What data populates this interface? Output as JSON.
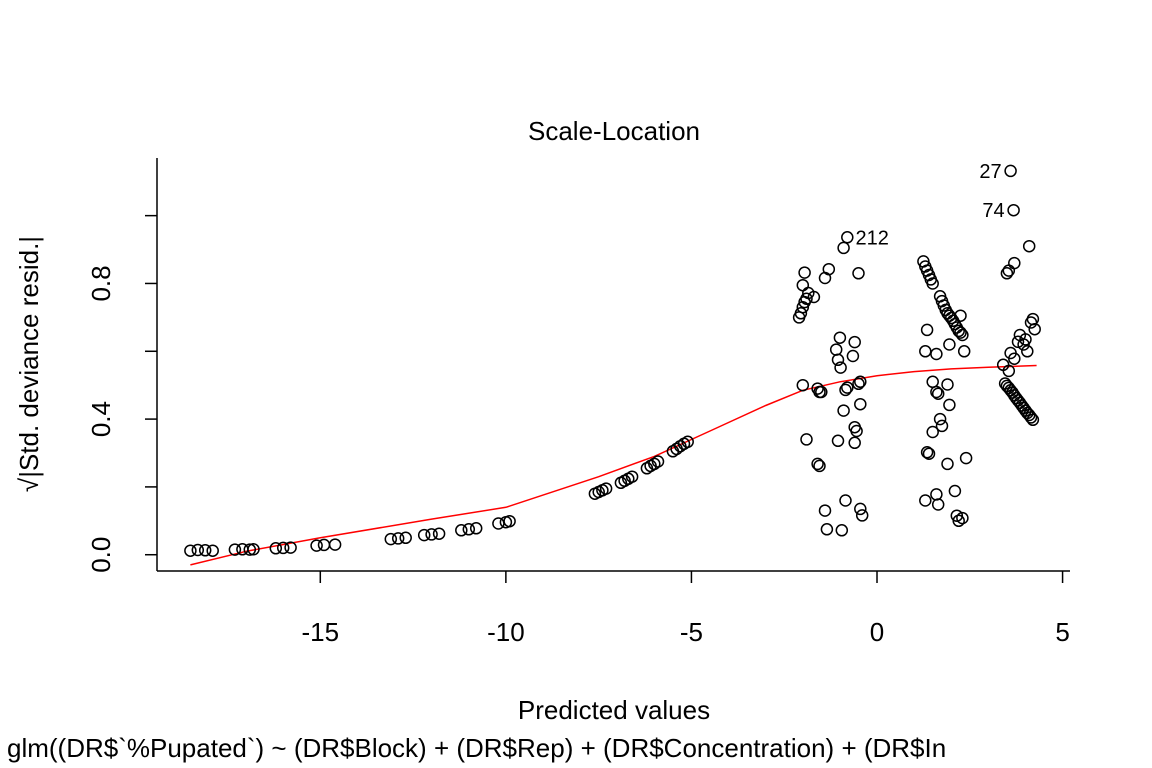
{
  "chart_data": {
    "type": "scatter",
    "title": "Scale-Location",
    "xlabel": "Predicted values",
    "ylabel": "√|Std. deviance resid.|",
    "caption": "glm((DR$`%Pupated`) ~ (DR$Block) + (DR$Rep) + (DR$Concentration) + (DR$In",
    "xlim": [
      -19.4,
      5.2
    ],
    "ylim": [
      -0.048,
      1.17
    ],
    "x_ticks": [
      "-15",
      "-10",
      "-5",
      "0",
      "5"
    ],
    "x_tick_values": [
      -15,
      -10,
      -5,
      0,
      5
    ],
    "y_ticks": [
      "0.0",
      "0.4",
      "0.8"
    ],
    "y_tick_values": [
      0,
      0.2,
      0.4,
      0.6,
      0.8,
      1.0
    ],
    "y_tick_labeled": [
      true,
      false,
      true,
      false,
      true,
      false
    ],
    "grid": false,
    "point_color": "#000000",
    "smooth_color": "#ff0000",
    "annotations": [
      {
        "text": "27",
        "x": 3.6,
        "y": 1.132
      },
      {
        "text": "74",
        "x": 3.68,
        "y": 1.016
      },
      {
        "text": "212",
        "x": -0.85,
        "y": 0.936
      }
    ],
    "series": [
      {
        "points": [
          [
            -18.5,
            0.012
          ],
          [
            -18.3,
            0.014
          ],
          [
            -18.1,
            0.013
          ],
          [
            -17.9,
            0.012
          ],
          [
            -17.3,
            0.015
          ],
          [
            -17.1,
            0.016
          ],
          [
            -16.9,
            0.015
          ],
          [
            -16.8,
            0.016
          ],
          [
            -16.2,
            0.019
          ],
          [
            -16.0,
            0.02
          ],
          [
            -15.8,
            0.021
          ],
          [
            -15.1,
            0.027
          ],
          [
            -14.9,
            0.029
          ],
          [
            -14.6,
            0.03
          ],
          [
            -13.1,
            0.046
          ],
          [
            -12.9,
            0.048
          ],
          [
            -12.7,
            0.05
          ],
          [
            -12.2,
            0.058
          ],
          [
            -12.0,
            0.06
          ],
          [
            -11.8,
            0.062
          ],
          [
            -11.2,
            0.072
          ],
          [
            -11.0,
            0.075
          ],
          [
            -10.8,
            0.078
          ],
          [
            -10.2,
            0.092
          ],
          [
            -10.0,
            0.096
          ],
          [
            -9.9,
            0.099
          ],
          [
            -7.6,
            0.18
          ],
          [
            -7.5,
            0.185
          ],
          [
            -7.4,
            0.19
          ],
          [
            -7.3,
            0.195
          ],
          [
            -6.9,
            0.212
          ],
          [
            -6.8,
            0.218
          ],
          [
            -6.7,
            0.224
          ],
          [
            -6.6,
            0.23
          ],
          [
            -6.2,
            0.255
          ],
          [
            -6.1,
            0.262
          ],
          [
            -6.0,
            0.268
          ],
          [
            -5.9,
            0.275
          ],
          [
            -5.5,
            0.305
          ],
          [
            -5.4,
            0.312
          ],
          [
            -5.3,
            0.32
          ],
          [
            -5.2,
            0.327
          ],
          [
            -5.1,
            0.333
          ],
          [
            -2.1,
            0.7
          ],
          [
            -2.05,
            0.712
          ],
          [
            -2.0,
            0.73
          ],
          [
            -1.95,
            0.745
          ],
          [
            -1.9,
            0.755
          ],
          [
            -1.85,
            0.772
          ],
          [
            -1.7,
            0.76
          ],
          [
            -2.0,
            0.795
          ],
          [
            -1.95,
            0.832
          ],
          [
            -2.0,
            0.5
          ],
          [
            -1.9,
            0.34
          ],
          [
            -1.6,
            0.49
          ],
          [
            -1.55,
            0.48
          ],
          [
            -1.5,
            0.48
          ],
          [
            -1.6,
            0.268
          ],
          [
            -1.55,
            0.262
          ],
          [
            -1.4,
            0.13
          ],
          [
            -1.35,
            0.075
          ],
          [
            -1.4,
            0.816
          ],
          [
            -1.3,
            0.842
          ],
          [
            -1.1,
            0.605
          ],
          [
            -1.05,
            0.575
          ],
          [
            -1.0,
            0.64
          ],
          [
            -0.98,
            0.552
          ],
          [
            -1.05,
            0.336
          ],
          [
            -0.9,
            0.905
          ],
          [
            -0.85,
            0.486
          ],
          [
            -0.8,
            0.493
          ],
          [
            -0.9,
            0.425
          ],
          [
            -0.85,
            0.16
          ],
          [
            -0.95,
            0.072
          ],
          [
            -0.8,
            0.936
          ],
          [
            -0.65,
            0.586
          ],
          [
            -0.6,
            0.627
          ],
          [
            -0.6,
            0.376
          ],
          [
            -0.55,
            0.365
          ],
          [
            -0.6,
            0.33
          ],
          [
            -0.5,
            0.504
          ],
          [
            -0.45,
            0.51
          ],
          [
            -0.45,
            0.444
          ],
          [
            -0.5,
            0.83
          ],
          [
            -0.45,
            0.135
          ],
          [
            -0.4,
            0.116
          ],
          [
            1.25,
            0.865
          ],
          [
            1.3,
            0.85
          ],
          [
            1.35,
            0.838
          ],
          [
            1.4,
            0.825
          ],
          [
            1.45,
            0.812
          ],
          [
            1.5,
            0.8
          ],
          [
            1.35,
            0.663
          ],
          [
            1.3,
            0.6
          ],
          [
            1.6,
            0.592
          ],
          [
            1.5,
            0.51
          ],
          [
            1.6,
            0.48
          ],
          [
            1.65,
            0.475
          ],
          [
            1.7,
            0.4
          ],
          [
            1.75,
            0.38
          ],
          [
            1.5,
            0.362
          ],
          [
            1.35,
            0.302
          ],
          [
            1.4,
            0.298
          ],
          [
            1.3,
            0.16
          ],
          [
            1.6,
            0.178
          ],
          [
            1.65,
            0.148
          ],
          [
            1.7,
            0.762
          ],
          [
            1.75,
            0.748
          ],
          [
            1.8,
            0.735
          ],
          [
            1.85,
            0.722
          ],
          [
            1.9,
            0.712
          ],
          [
            1.95,
            0.705
          ],
          [
            2.0,
            0.698
          ],
          [
            2.05,
            0.69
          ],
          [
            2.1,
            0.68
          ],
          [
            2.15,
            0.67
          ],
          [
            2.2,
            0.66
          ],
          [
            2.25,
            0.655
          ],
          [
            2.3,
            0.648
          ],
          [
            2.35,
            0.6
          ],
          [
            2.25,
            0.705
          ],
          [
            1.95,
            0.62
          ],
          [
            1.9,
            0.502
          ],
          [
            1.95,
            0.442
          ],
          [
            1.9,
            0.268
          ],
          [
            2.1,
            0.188
          ],
          [
            2.15,
            0.115
          ],
          [
            2.2,
            0.1
          ],
          [
            2.3,
            0.108
          ],
          [
            2.4,
            0.285
          ],
          [
            3.4,
            0.56
          ],
          [
            3.45,
            0.505
          ],
          [
            3.5,
            0.498
          ],
          [
            3.55,
            0.492
          ],
          [
            3.6,
            0.485
          ],
          [
            3.65,
            0.478
          ],
          [
            3.7,
            0.47
          ],
          [
            3.75,
            0.462
          ],
          [
            3.8,
            0.455
          ],
          [
            3.85,
            0.448
          ],
          [
            3.9,
            0.44
          ],
          [
            3.95,
            0.433
          ],
          [
            4.0,
            0.425
          ],
          [
            4.05,
            0.418
          ],
          [
            4.1,
            0.412
          ],
          [
            4.15,
            0.405
          ],
          [
            4.2,
            0.398
          ],
          [
            3.5,
            0.83
          ],
          [
            3.55,
            0.838
          ],
          [
            3.7,
            0.86
          ],
          [
            3.6,
            0.595
          ],
          [
            3.55,
            0.542
          ],
          [
            3.7,
            0.578
          ],
          [
            3.8,
            0.628
          ],
          [
            3.85,
            0.648
          ],
          [
            3.95,
            0.62
          ],
          [
            4.0,
            0.635
          ],
          [
            4.05,
            0.6
          ],
          [
            4.15,
            0.685
          ],
          [
            4.2,
            0.695
          ],
          [
            4.25,
            0.665
          ],
          [
            4.1,
            0.91
          ],
          [
            3.6,
            1.132
          ],
          [
            3.68,
            1.016
          ]
        ]
      }
    ],
    "smooth": {
      "x": [
        -18.5,
        -17.0,
        -15.0,
        -12.0,
        -10.0,
        -7.5,
        -6.0,
        -4.5,
        -3.0,
        -2.0,
        -1.0,
        0.0,
        1.0,
        2.0,
        3.0,
        4.3
      ],
      "y": [
        -0.03,
        0.01,
        0.05,
        0.105,
        0.14,
        0.23,
        0.29,
        0.365,
        0.44,
        0.485,
        0.51,
        0.528,
        0.54,
        0.548,
        0.553,
        0.558
      ]
    }
  }
}
